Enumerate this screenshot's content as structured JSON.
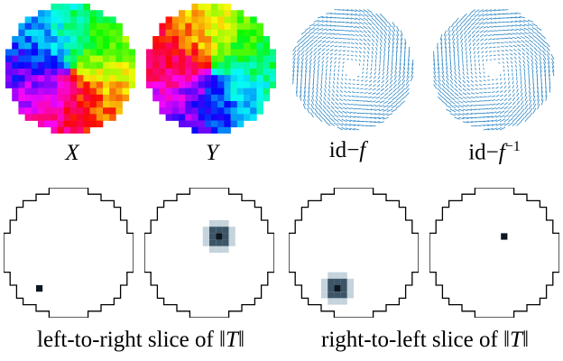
{
  "figure": {
    "top_row_captions": {
      "x_var": "X",
      "y_var": "Y",
      "id_minus_f": {
        "op": "id",
        "minus": "−",
        "f": "f"
      },
      "id_minus_finv": {
        "op": "id",
        "minus": "−",
        "f": "f",
        "sup": "−1"
      }
    },
    "bottom_row_captions": {
      "left_to_right": {
        "text": "left-to-right slice of ",
        "norm": "‖T‖"
      },
      "right_to_left": {
        "text": "right-to-left slice of ",
        "norm": "‖T‖"
      }
    },
    "colors": {
      "arrow": "#2b86c5",
      "outline": "#000000",
      "heat_core": "#0d1620",
      "heat_mid": "#3c5566",
      "heat_halo": "#c4d3dc"
    },
    "heat_spots": [
      {
        "panel": "bottom-1",
        "row": 15,
        "col": 5,
        "spread": 0
      },
      {
        "panel": "bottom-2",
        "row": 7,
        "col": 11,
        "spread": 2
      },
      {
        "panel": "bottom-3",
        "row": 15,
        "col": 7,
        "spread": 2
      },
      {
        "panel": "bottom-4",
        "row": 7,
        "col": 11,
        "spread": 0
      }
    ]
  }
}
